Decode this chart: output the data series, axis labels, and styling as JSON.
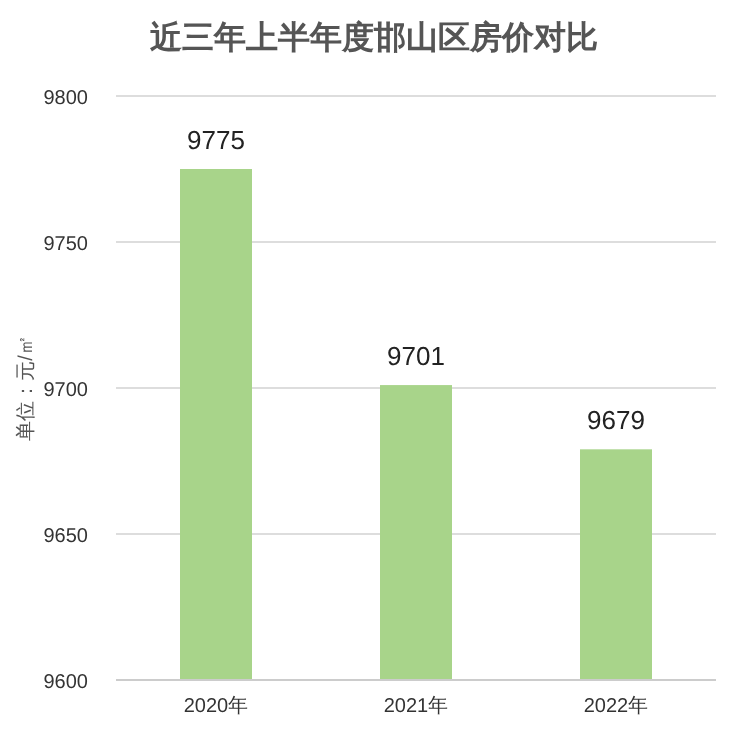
{
  "chart_data": {
    "type": "bar",
    "title": "近三年上半年度邯山区房价对比",
    "ylabel": "单位：元/㎡",
    "categories": [
      "2020年",
      "2021年",
      "2022年"
    ],
    "values": [
      9775,
      9701,
      9679
    ],
    "color": "#a8d48a",
    "ylim": [
      9600,
      9800
    ],
    "yticks": [
      9600,
      9650,
      9700,
      9750,
      9800
    ],
    "grid": "y",
    "data_labels": true
  }
}
